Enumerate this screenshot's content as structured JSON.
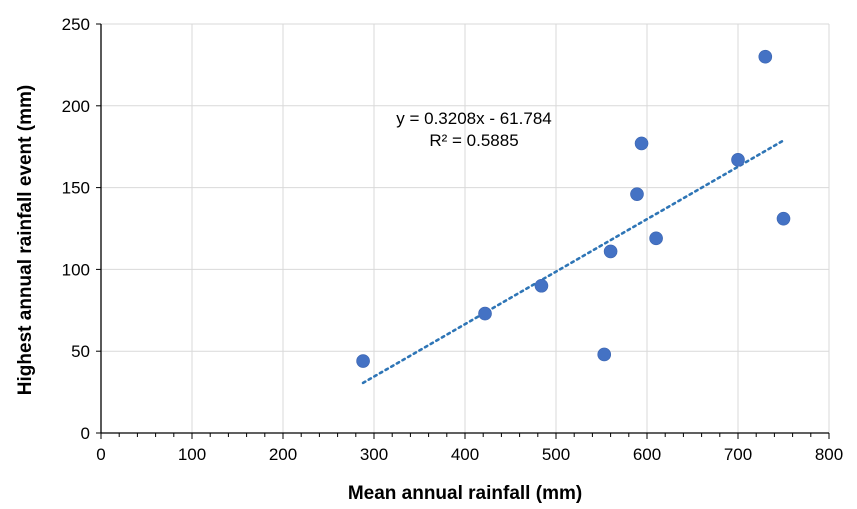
{
  "chart_data": {
    "type": "scatter",
    "xlabel": "Mean annual rainfall (mm)",
    "ylabel": "Highest annual rainfall  event (mm)",
    "xlim": [
      0,
      800
    ],
    "ylim": [
      0,
      250
    ],
    "xticks": [
      0,
      100,
      200,
      300,
      400,
      500,
      600,
      700,
      800
    ],
    "yticks": [
      0,
      50,
      100,
      150,
      200,
      250
    ],
    "grid": true,
    "series": [
      {
        "color": "#4472c4",
        "points": [
          {
            "x": 288,
            "y": 44
          },
          {
            "x": 422,
            "y": 73
          },
          {
            "x": 484,
            "y": 90
          },
          {
            "x": 553,
            "y": 48
          },
          {
            "x": 560,
            "y": 111
          },
          {
            "x": 589,
            "y": 146
          },
          {
            "x": 594,
            "y": 177
          },
          {
            "x": 610,
            "y": 119
          },
          {
            "x": 700,
            "y": 167
          },
          {
            "x": 730,
            "y": 230
          },
          {
            "x": 750,
            "y": 131
          }
        ]
      }
    ],
    "trendline": {
      "type": "linear",
      "slope": 0.3208,
      "intercept": -61.784,
      "x_from": 288,
      "x_to": 750,
      "color": "#2e75b6",
      "equation_text": "y = 0.3208x - 61.784",
      "r2_text": "R² = 0.5885"
    }
  }
}
